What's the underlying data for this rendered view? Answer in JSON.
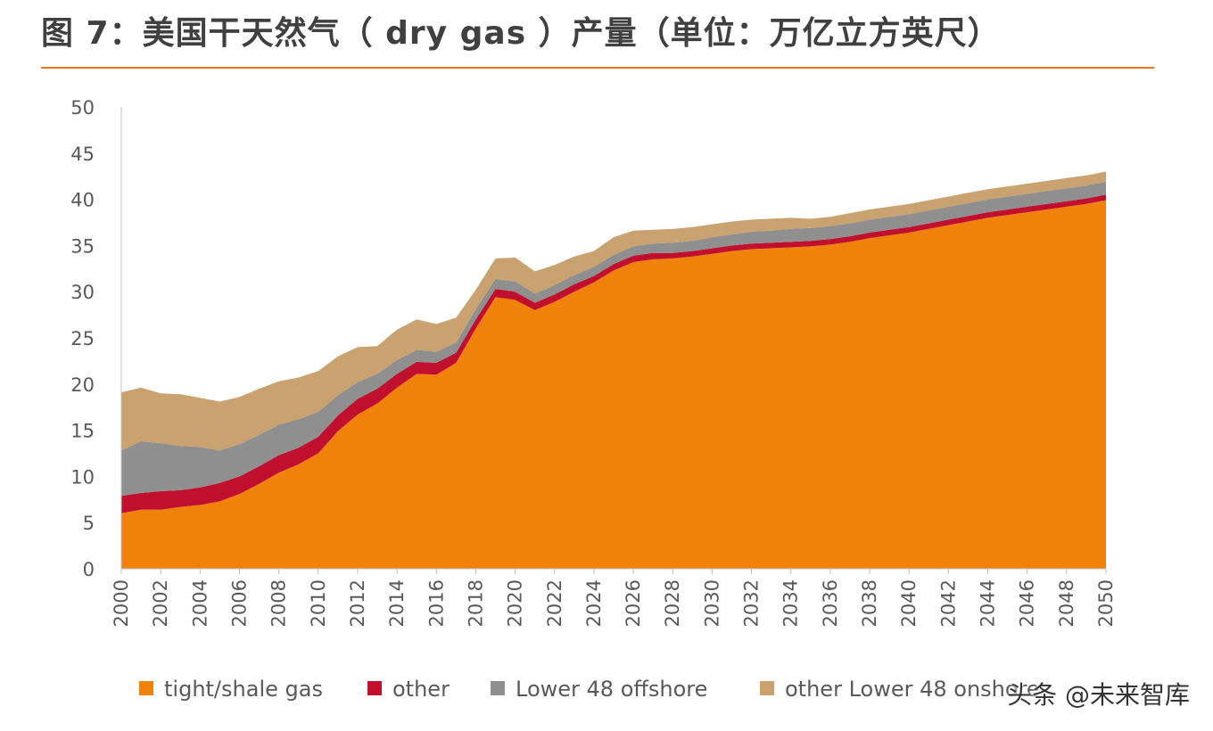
{
  "title": "图 7：美国干天然气（ dry gas ）产量（单位：万亿立方英尺）",
  "watermark": "头条 @未来智库",
  "colors": {
    "tight_shale_gas": "#f0820a",
    "other": "#c0102e",
    "lower48_offshore": "#8f8f8f",
    "other_lower48_onshore": "#c9a26f",
    "title_rule": "#e8761f",
    "axis_text": "#595959"
  },
  "chart_data": {
    "type": "area",
    "stacked": true,
    "title": "",
    "xlabel": "",
    "ylabel": "",
    "ylim": [
      0,
      50
    ],
    "yticks": [
      0,
      5,
      10,
      15,
      20,
      25,
      30,
      35,
      40,
      45,
      50
    ],
    "xlim": [
      2000,
      2050
    ],
    "xticks": [
      2000,
      2002,
      2004,
      2006,
      2008,
      2010,
      2012,
      2014,
      2016,
      2018,
      2020,
      2022,
      2024,
      2026,
      2028,
      2030,
      2032,
      2034,
      2036,
      2038,
      2040,
      2042,
      2044,
      2046,
      2048,
      2050
    ],
    "grid": false,
    "legend_position": "bottom",
    "x": [
      2000,
      2001,
      2002,
      2003,
      2004,
      2005,
      2006,
      2007,
      2008,
      2009,
      2010,
      2011,
      2012,
      2013,
      2014,
      2015,
      2016,
      2017,
      2018,
      2019,
      2020,
      2021,
      2022,
      2023,
      2024,
      2025,
      2026,
      2027,
      2028,
      2029,
      2030,
      2031,
      2032,
      2033,
      2034,
      2035,
      2036,
      2037,
      2038,
      2039,
      2040,
      2041,
      2042,
      2043,
      2044,
      2045,
      2046,
      2047,
      2048,
      2049,
      2050
    ],
    "series": [
      {
        "name": "tight/shale gas",
        "color": "#f0820a",
        "values": [
          6.0,
          6.4,
          6.4,
          6.7,
          6.9,
          7.3,
          8.1,
          9.2,
          10.4,
          11.3,
          12.5,
          14.9,
          16.7,
          17.9,
          19.6,
          21.1,
          21.0,
          22.3,
          26.0,
          29.4,
          29.1,
          28.0,
          28.9,
          30.0,
          31.0,
          32.3,
          33.2,
          33.5,
          33.6,
          33.8,
          34.1,
          34.4,
          34.6,
          34.7,
          34.8,
          34.9,
          35.1,
          35.4,
          35.8,
          36.1,
          36.4,
          36.8,
          37.2,
          37.6,
          38.0,
          38.3,
          38.6,
          38.9,
          39.2,
          39.5,
          39.9
        ]
      },
      {
        "name": "other",
        "color": "#c0102e",
        "values": [
          1.9,
          1.8,
          2.0,
          1.8,
          1.9,
          2.0,
          1.9,
          1.9,
          1.9,
          1.8,
          1.8,
          1.7,
          1.7,
          1.6,
          1.5,
          1.3,
          1.3,
          1.1,
          1.0,
          0.9,
          0.9,
          0.8,
          0.8,
          0.8,
          0.7,
          0.7,
          0.7,
          0.7,
          0.6,
          0.6,
          0.6,
          0.6,
          0.6,
          0.6,
          0.6,
          0.6,
          0.6,
          0.6,
          0.6,
          0.6,
          0.6,
          0.6,
          0.6,
          0.6,
          0.6,
          0.6,
          0.6,
          0.6,
          0.6,
          0.6,
          0.6
        ]
      },
      {
        "name": "Lower 48 offshore",
        "color": "#8f8f8f",
        "values": [
          4.9,
          5.6,
          5.2,
          4.8,
          4.4,
          3.5,
          3.5,
          3.4,
          3.3,
          3.1,
          2.7,
          2.2,
          1.8,
          1.6,
          1.5,
          1.3,
          1.2,
          1.1,
          1.1,
          1.1,
          1.1,
          1.0,
          1.0,
          1.0,
          1.0,
          1.0,
          1.0,
          1.0,
          1.1,
          1.1,
          1.2,
          1.2,
          1.3,
          1.3,
          1.4,
          1.4,
          1.4,
          1.4,
          1.4,
          1.4,
          1.4,
          1.4,
          1.4,
          1.4,
          1.4,
          1.4,
          1.4,
          1.4,
          1.4,
          1.4,
          1.4
        ]
      },
      {
        "name": "other Lower 48 onshore",
        "color": "#c9a26f",
        "values": [
          6.3,
          5.8,
          5.4,
          5.6,
          5.3,
          5.3,
          5.1,
          5.0,
          4.7,
          4.5,
          4.4,
          4.2,
          3.8,
          3.0,
          3.3,
          3.3,
          3.0,
          2.7,
          2.1,
          2.2,
          2.6,
          2.4,
          2.2,
          2.0,
          1.7,
          1.9,
          1.7,
          1.5,
          1.5,
          1.5,
          1.4,
          1.4,
          1.3,
          1.3,
          1.2,
          1.0,
          1.0,
          1.1,
          1.1,
          1.1,
          1.1,
          1.1,
          1.1,
          1.1,
          1.1,
          1.1,
          1.1,
          1.1,
          1.1,
          1.1,
          1.1
        ]
      }
    ]
  }
}
